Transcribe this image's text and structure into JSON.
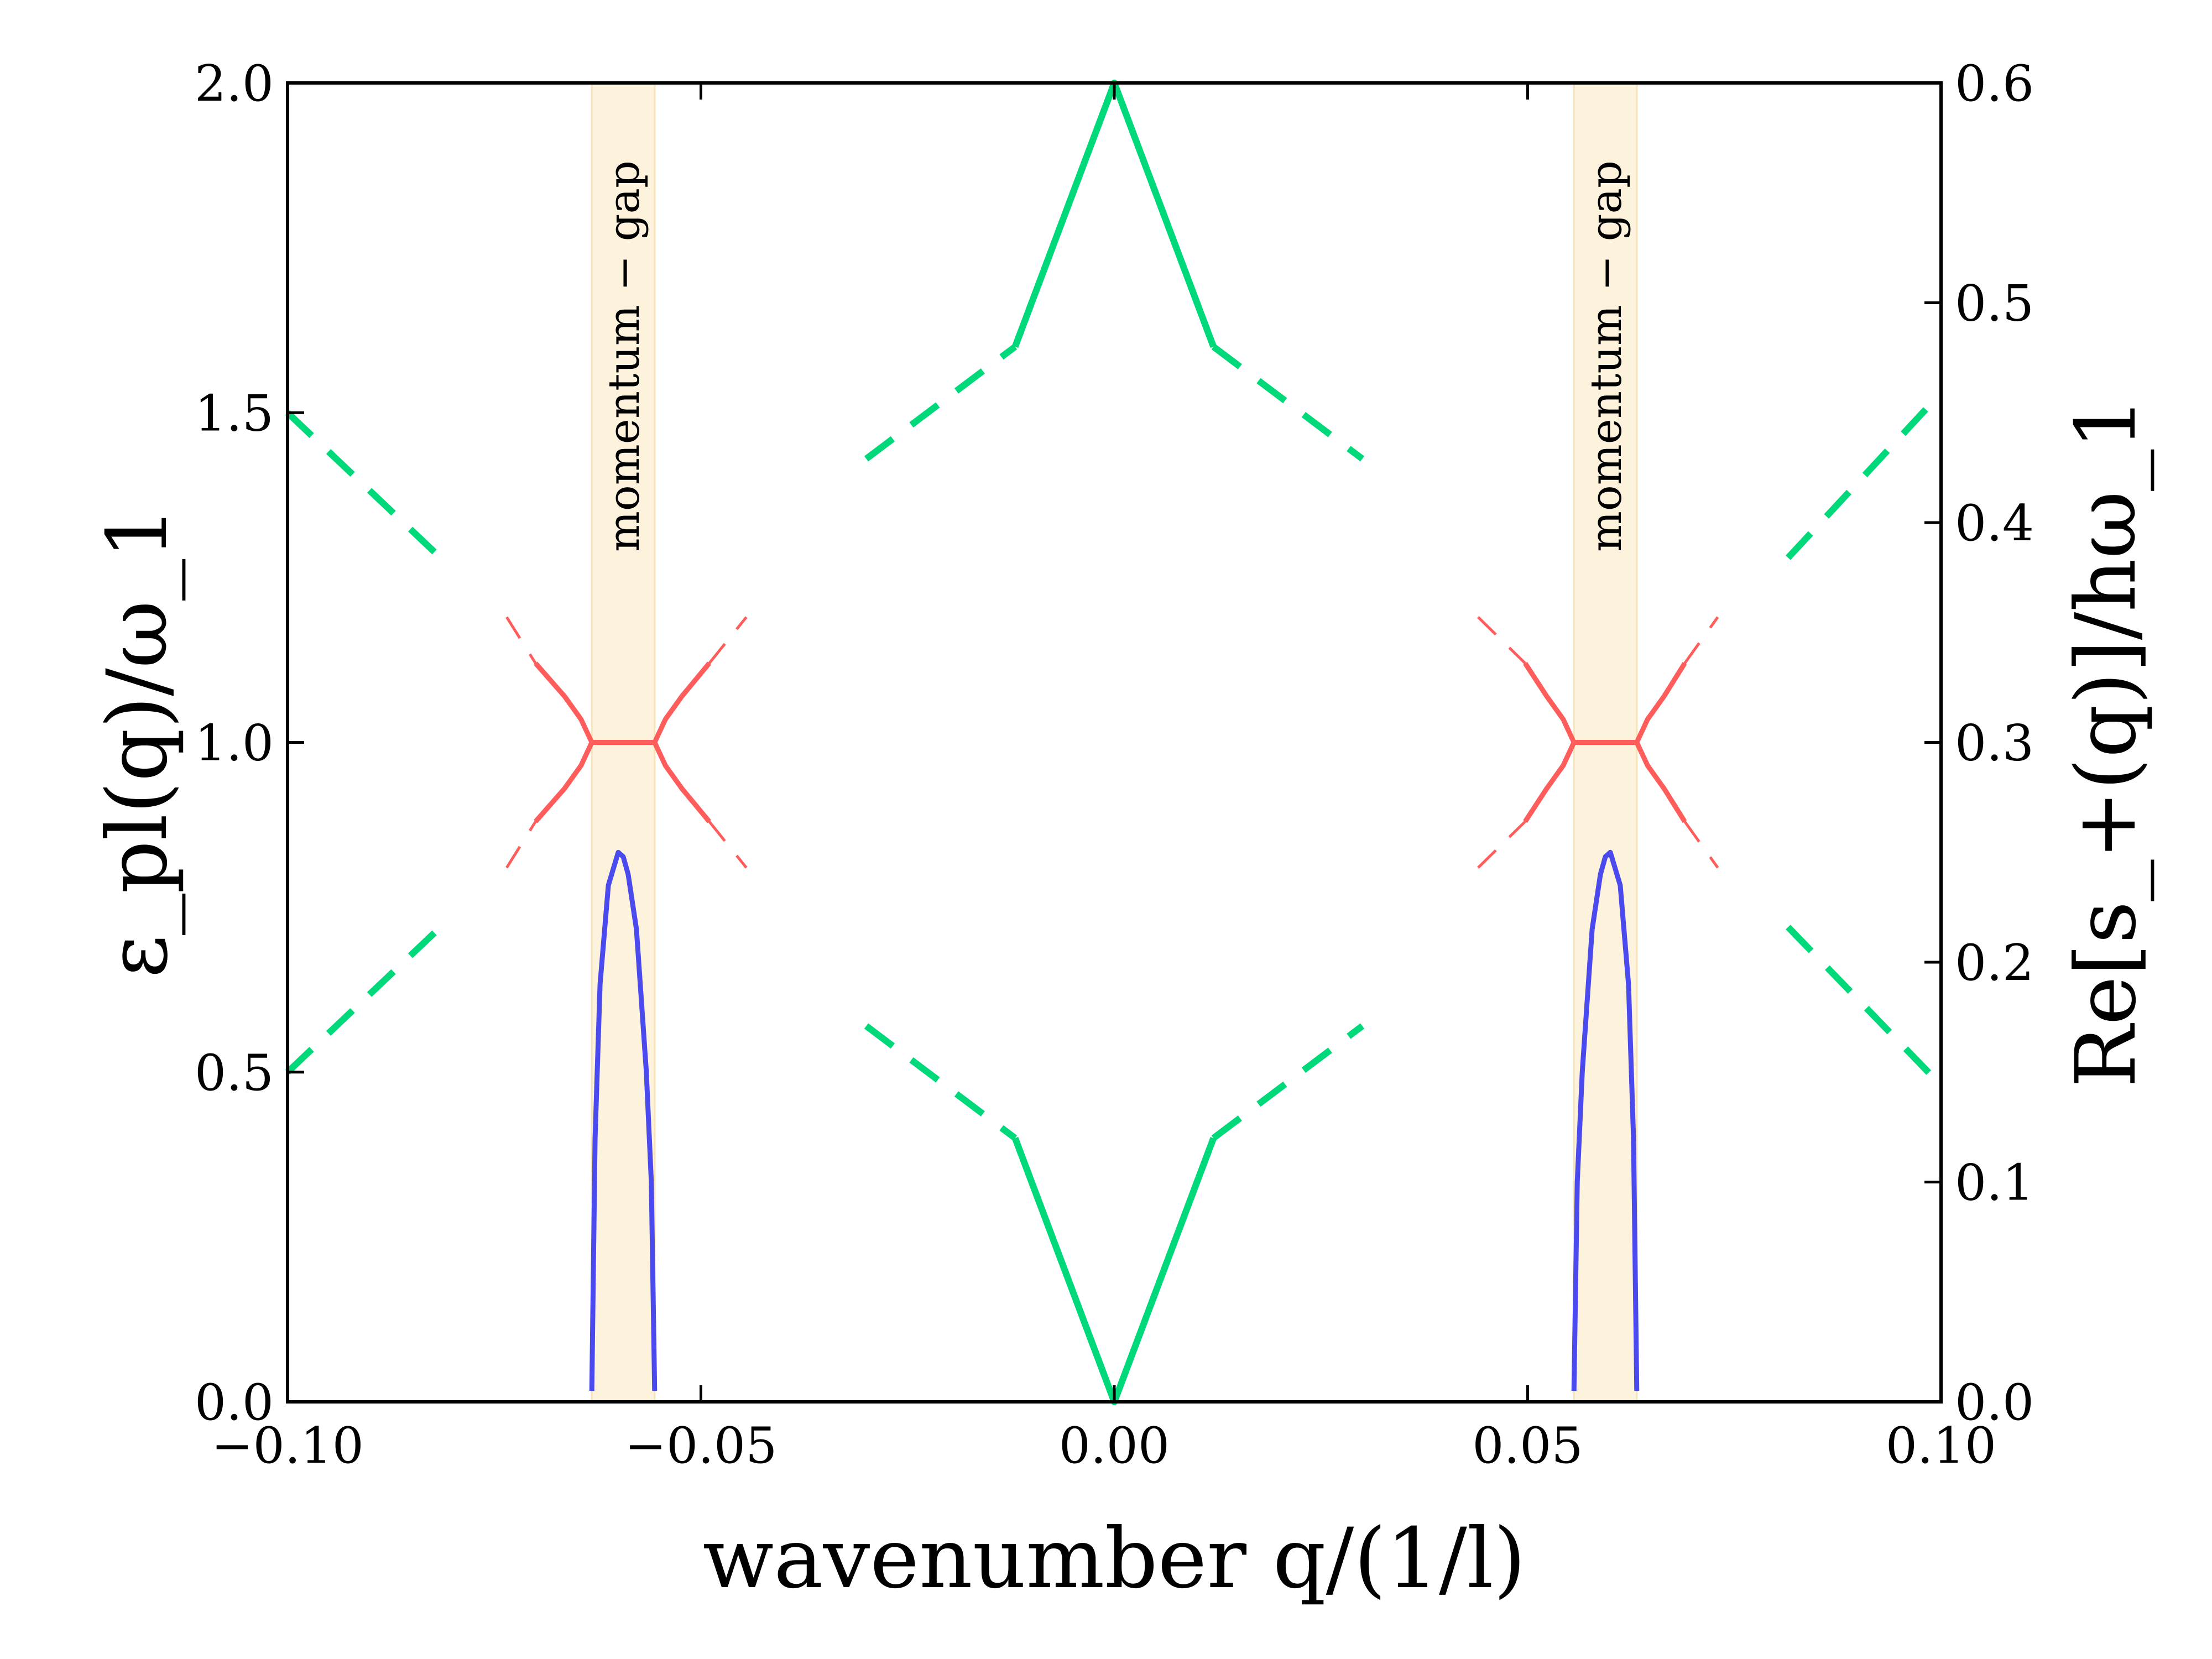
{
  "chart_data": {
    "type": "line",
    "xlabel": "wavenumber q/(1/l)",
    "ylabel_left": "ε_pl(q)/ω_1",
    "ylabel_right": "Re[s_+(q)]/hω_1",
    "xlim": [
      -0.1,
      0.1
    ],
    "ylim_left": [
      0.0,
      2.0
    ],
    "ylim_right": [
      0.0,
      0.6
    ],
    "x_ticks": [
      "−0.10",
      "−0.05",
      "0.00",
      "0.05",
      "0.10"
    ],
    "y_ticks_left": [
      "0.0",
      "0.5",
      "1.0",
      "1.5",
      "2.0"
    ],
    "y_ticks_right": [
      "0.0",
      "0.1",
      "0.2",
      "0.3",
      "0.4",
      "0.5",
      "0.6"
    ],
    "grid": false,
    "shaded_bands": [
      {
        "label": "momentum − gap",
        "x_range": [
          -0.0632,
          -0.0556
        ]
      },
      {
        "label": "momentum − gap",
        "x_range": [
          0.0556,
          0.0632
        ]
      }
    ],
    "series": [
      {
        "axis": "left",
        "color": "#00d97a",
        "style": "solid",
        "x": [
          -0.012,
          0.0,
          0.012
        ],
        "y": [
          1.6,
          2.0,
          1.6
        ]
      },
      {
        "axis": "left",
        "color": "#00d97a",
        "style": "solid",
        "x": [
          -0.012,
          0.0,
          0.012
        ],
        "y": [
          0.4,
          0.0,
          0.4
        ]
      },
      {
        "axis": "left",
        "color": "#00d97a",
        "style": "dashed",
        "x": [
          -0.03,
          -0.012
        ],
        "y": [
          1.43,
          1.6
        ]
      },
      {
        "axis": "left",
        "color": "#00d97a",
        "style": "dashed",
        "x": [
          0.012,
          0.03
        ],
        "y": [
          1.6,
          1.43
        ]
      },
      {
        "axis": "left",
        "color": "#00d97a",
        "style": "dashed",
        "x": [
          -0.03,
          -0.012
        ],
        "y": [
          0.57,
          0.4
        ]
      },
      {
        "axis": "left",
        "color": "#00d97a",
        "style": "dashed",
        "x": [
          0.012,
          0.03
        ],
        "y": [
          0.4,
          0.57
        ]
      },
      {
        "axis": "left",
        "color": "#00d97a",
        "style": "dashed",
        "x": [
          -0.1,
          -0.0815
        ],
        "y": [
          1.5,
          1.28
        ]
      },
      {
        "axis": "left",
        "color": "#00d97a",
        "style": "dashed",
        "x": [
          -0.1,
          -0.0815
        ],
        "y": [
          0.5,
          0.72
        ]
      },
      {
        "axis": "left",
        "color": "#00d97a",
        "style": "dashed",
        "x": [
          0.0815,
          0.1
        ],
        "y": [
          1.28,
          1.53
        ]
      },
      {
        "axis": "left",
        "color": "#00d97a",
        "style": "dashed",
        "x": [
          0.0815,
          0.1
        ],
        "y": [
          0.72,
          0.48
        ]
      },
      {
        "axis": "left",
        "color": "#ff5c5c",
        "style": "solid",
        "x": [
          -0.0632,
          -0.0556
        ],
        "y": [
          1.0,
          1.0
        ]
      },
      {
        "axis": "left",
        "color": "#ff5c5c",
        "style": "solid",
        "x": [
          0.0556,
          0.0632
        ],
        "y": [
          1.0,
          1.0
        ]
      },
      {
        "axis": "left",
        "color": "#ff5c5c",
        "style": "solid",
        "x": [
          -0.07,
          -0.0665,
          -0.0645,
          -0.0632,
          -0.0645,
          -0.0665,
          -0.07
        ],
        "y": [
          1.12,
          1.07,
          1.035,
          1.0,
          0.965,
          0.93,
          0.88
        ]
      },
      {
        "axis": "left",
        "color": "#ff5c5c",
        "style": "solid",
        "x": [
          -0.049,
          -0.0523,
          -0.0543,
          -0.0556,
          -0.0543,
          -0.0523,
          -0.049
        ],
        "y": [
          1.12,
          1.07,
          1.035,
          1.0,
          0.965,
          0.93,
          0.88
        ]
      },
      {
        "axis": "left",
        "color": "#ff5c5c",
        "style": "solid",
        "x": [
          0.0497,
          0.0523,
          0.0543,
          0.0556,
          0.0543,
          0.0523,
          0.0497
        ],
        "y": [
          1.12,
          1.07,
          1.035,
          1.0,
          0.965,
          0.93,
          0.88
        ]
      },
      {
        "axis": "left",
        "color": "#ff5c5c",
        "style": "solid",
        "x": [
          0.069,
          0.0665,
          0.0645,
          0.0632,
          0.0645,
          0.0665,
          0.069
        ],
        "y": [
          1.12,
          1.07,
          1.035,
          1.0,
          0.965,
          0.93,
          0.88
        ]
      },
      {
        "axis": "left",
        "color": "#ff5c5c",
        "style": "dashed",
        "x": [
          -0.0735,
          -0.07
        ],
        "y": [
          1.19,
          1.12
        ]
      },
      {
        "axis": "left",
        "color": "#ff5c5c",
        "style": "dashed",
        "x": [
          -0.0735,
          -0.07
        ],
        "y": [
          0.81,
          0.88
        ]
      },
      {
        "axis": "left",
        "color": "#ff5c5c",
        "style": "dashed",
        "x": [
          -0.049,
          -0.0445
        ],
        "y": [
          1.12,
          1.19
        ]
      },
      {
        "axis": "left",
        "color": "#ff5c5c",
        "style": "dashed",
        "x": [
          -0.049,
          -0.0445
        ],
        "y": [
          0.88,
          0.81
        ]
      },
      {
        "axis": "left",
        "color": "#ff5c5c",
        "style": "dashed",
        "x": [
          0.044,
          0.0497
        ],
        "y": [
          1.19,
          1.12
        ]
      },
      {
        "axis": "left",
        "color": "#ff5c5c",
        "style": "dashed",
        "x": [
          0.044,
          0.0497
        ],
        "y": [
          0.81,
          0.88
        ]
      },
      {
        "axis": "left",
        "color": "#ff5c5c",
        "style": "dashed",
        "x": [
          0.069,
          0.073
        ],
        "y": [
          1.12,
          1.19
        ]
      },
      {
        "axis": "left",
        "color": "#ff5c5c",
        "style": "dashed",
        "x": [
          0.069,
          0.073
        ],
        "y": [
          0.88,
          0.81
        ]
      },
      {
        "axis": "right",
        "color": "#4a4aee",
        "style": "solid",
        "x": [
          -0.0632,
          -0.0628,
          -0.0622,
          -0.0612,
          -0.06,
          -0.0594,
          -0.0588,
          -0.0578,
          -0.0566,
          -0.056,
          -0.0556
        ],
        "y": [
          0.005,
          0.12,
          0.19,
          0.235,
          0.25,
          0.248,
          0.24,
          0.215,
          0.15,
          0.1,
          0.005
        ]
      },
      {
        "axis": "right",
        "color": "#4a4aee",
        "style": "solid",
        "x": [
          0.0556,
          0.056,
          0.0566,
          0.0578,
          0.0588,
          0.0594,
          0.06,
          0.0612,
          0.0622,
          0.0628,
          0.0632
        ],
        "y": [
          0.005,
          0.1,
          0.15,
          0.215,
          0.24,
          0.248,
          0.25,
          0.235,
          0.19,
          0.12,
          0.005
        ]
      }
    ]
  }
}
